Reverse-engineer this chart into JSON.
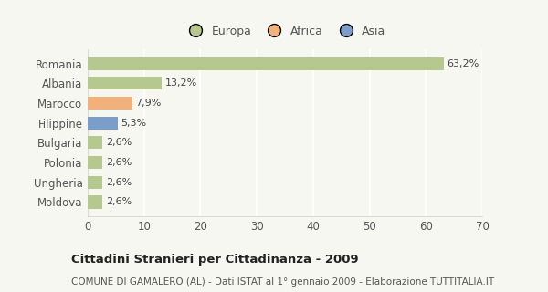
{
  "categories": [
    "Romania",
    "Albania",
    "Marocco",
    "Filippine",
    "Bulgaria",
    "Polonia",
    "Ungheria",
    "Moldova"
  ],
  "values": [
    63.2,
    13.2,
    7.9,
    5.3,
    2.6,
    2.6,
    2.6,
    2.6
  ],
  "labels": [
    "63,2%",
    "13,2%",
    "7,9%",
    "5,3%",
    "2,6%",
    "2,6%",
    "2,6%",
    "2,6%"
  ],
  "colors": [
    "#b5c98e",
    "#b5c98e",
    "#f2b07a",
    "#7b9dc9",
    "#b5c98e",
    "#b5c98e",
    "#b5c98e",
    "#b5c98e"
  ],
  "legend": [
    {
      "label": "Europa",
      "color": "#b5c98e"
    },
    {
      "label": "Africa",
      "color": "#f2b07a"
    },
    {
      "label": "Asia",
      "color": "#7b9dc9"
    }
  ],
  "xlim": [
    0,
    70
  ],
  "xticks": [
    0,
    10,
    20,
    30,
    40,
    50,
    60,
    70
  ],
  "title": "Cittadini Stranieri per Cittadinanza - 2009",
  "subtitle": "COMUNE DI GAMALERO (AL) - Dati ISTAT al 1° gennaio 2009 - Elaborazione TUTTITALIA.IT",
  "background_color": "#f7f7f2",
  "plot_bg_color": "#f7f7f2",
  "grid_color": "#ffffff",
  "bar_height": 0.65,
  "label_fontsize": 8,
  "tick_fontsize": 8.5,
  "title_fontsize": 9.5,
  "subtitle_fontsize": 7.5,
  "legend_fontsize": 9
}
